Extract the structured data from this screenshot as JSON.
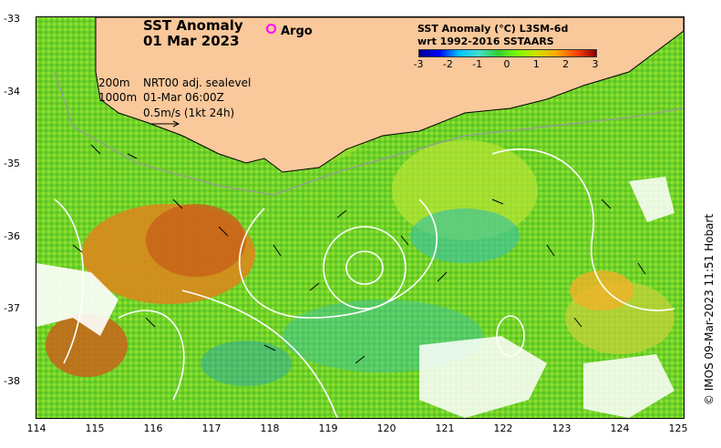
{
  "title": {
    "line1": "SST Anomaly",
    "line2": "01 Mar 2023"
  },
  "argo_legend": {
    "label": "Argo",
    "color": "#ff00ff"
  },
  "colorbar": {
    "title_line1": "SST Anomaly (°C) L3SM-6d",
    "title_line2": "wrt 1992-2016 SSTAARS",
    "ticks": [
      "-3",
      "-2",
      "-1",
      "0",
      "1",
      "2",
      "3"
    ],
    "colors": [
      "#00008b",
      "#0000ff",
      "#00bfff",
      "#40e0d0",
      "#32cd32",
      "#7cfc00",
      "#d0e000",
      "#ffa500",
      "#ff4500",
      "#8b0000"
    ]
  },
  "info": {
    "depth_200": "200m",
    "depth_1000": "1000m",
    "product": "NRT00 adj. sealevel",
    "time": "01-Mar 06:00Z",
    "scale": "0.5m/s (1kt 24h)"
  },
  "y_axis": [
    "-33",
    "-34",
    "-35",
    "-36",
    "-37",
    "-38"
  ],
  "x_axis": [
    "114",
    "115",
    "116",
    "117",
    "118",
    "119",
    "120",
    "121",
    "122",
    "123",
    "124",
    "125"
  ],
  "copyright": "© IMOS 09-Mar-2023 11:51 Hobart",
  "colors": {
    "land": "#f9c89b",
    "ocean_base": "#7ed321",
    "warm_anomaly": "#d9881c",
    "cool_anomaly": "#3cc3a0"
  }
}
